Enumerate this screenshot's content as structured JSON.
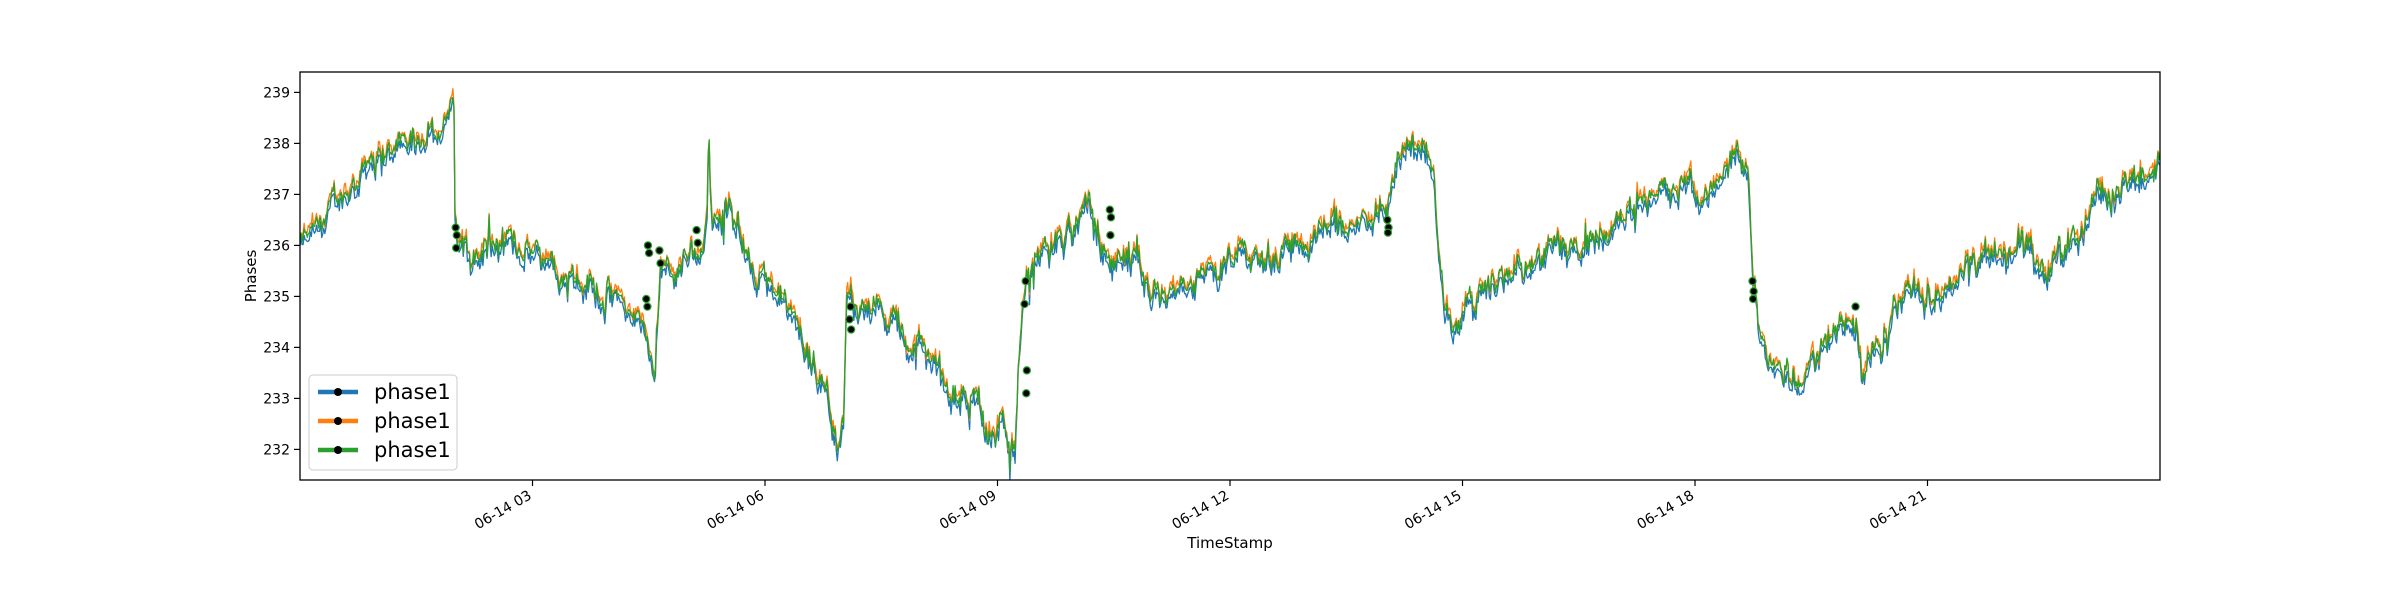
{
  "chart_data": {
    "type": "line",
    "xlabel": "TimeStamp",
    "ylabel": "Phases",
    "x_range": [
      "06-14 00:00",
      "06-14 23:59"
    ],
    "ylim": [
      231.4,
      239.4
    ],
    "yticks": [
      232,
      233,
      234,
      235,
      236,
      237,
      238,
      239
    ],
    "xticks": [
      {
        "hour": 3,
        "label": "06-14 03"
      },
      {
        "hour": 6,
        "label": "06-14 06"
      },
      {
        "hour": 9,
        "label": "06-14 09"
      },
      {
        "hour": 12,
        "label": "06-14 12"
      },
      {
        "hour": 15,
        "label": "06-14 15"
      },
      {
        "hour": 18,
        "label": "06-14 18"
      },
      {
        "hour": 21,
        "label": "06-14 21"
      }
    ],
    "grid": false,
    "legend": {
      "position": "lower-left"
    },
    "series": [
      {
        "name": "phase1",
        "color": "#1f77b4",
        "offset": -0.12
      },
      {
        "name": "phase1",
        "color": "#ff7f0e",
        "offset": 0.06
      },
      {
        "name": "phase1",
        "color": "#2ca02c",
        "offset": 0.0
      }
    ],
    "trend": [
      [
        0.0,
        236.0
      ],
      [
        0.3,
        236.2
      ],
      [
        0.6,
        236.8
      ],
      [
        0.9,
        237.2
      ],
      [
        1.2,
        237.8
      ],
      [
        1.5,
        237.8
      ],
      [
        1.8,
        238.0
      ],
      [
        2.1,
        238.2
      ],
      [
        2.4,
        238.4
      ],
      [
        2.6,
        238.7
      ],
      [
        2.7,
        238.8
      ],
      [
        2.71,
        236.2
      ],
      [
        2.9,
        235.8
      ],
      [
        3.5,
        235.9
      ],
      [
        4.0,
        236.0
      ],
      [
        4.5,
        235.8
      ],
      [
        5.0,
        235.4
      ],
      [
        5.5,
        235.0
      ],
      [
        6.0,
        234.4
      ],
      [
        6.2,
        233.6
      ],
      [
        6.25,
        234.8
      ],
      [
        6.3,
        235.9
      ],
      [
        6.5,
        235.4
      ],
      [
        6.8,
        236.0
      ],
      [
        7.0,
        235.9
      ],
      [
        7.1,
        236.5
      ],
      [
        7.15,
        238.1
      ],
      [
        7.2,
        236.4
      ],
      [
        7.5,
        236.8
      ],
      [
        7.8,
        235.8
      ],
      [
        8.0,
        235.3
      ],
      [
        8.3,
        235.0
      ],
      [
        8.7,
        234.2
      ],
      [
        9.2,
        233.2
      ],
      [
        9.4,
        232.4
      ],
      [
        9.5,
        232.5
      ],
      [
        9.55,
        235.1
      ],
      [
        9.8,
        234.8
      ],
      [
        10.0,
        235.0
      ],
      [
        10.3,
        234.8
      ],
      [
        10.6,
        234.2
      ],
      [
        11.0,
        233.8
      ],
      [
        11.5,
        233.2
      ],
      [
        12.2,
        232.4
      ],
      [
        12.5,
        232.0
      ],
      [
        12.55,
        233.5
      ],
      [
        12.7,
        235.2
      ],
      [
        12.9,
        235.8
      ],
      [
        13.2,
        236.0
      ],
      [
        13.5,
        236.3
      ],
      [
        13.8,
        236.6
      ],
      [
        14.2,
        235.6
      ],
      [
        14.6,
        235.5
      ],
      [
        15.0,
        235.2
      ],
      [
        15.5,
        235.3
      ],
      [
        16.0,
        235.5
      ],
      [
        16.5,
        235.6
      ],
      [
        17.0,
        235.8
      ],
      [
        17.5,
        236.0
      ],
      [
        17.8,
        236.2
      ],
      [
        18.0,
        236.4
      ],
      [
        18.5,
        236.4
      ],
      [
        19.0,
        237.0
      ],
      [
        19.3,
        237.8
      ],
      [
        19.6,
        238.0
      ],
      [
        19.8,
        237.6
      ],
      [
        19.85,
        236.3
      ],
      [
        20.0,
        235.0
      ],
      [
        20.2,
        234.6
      ],
      [
        20.5,
        235.0
      ],
      [
        21.0,
        235.4
      ],
      [
        21.5,
        235.6
      ],
      [
        22.0,
        236.0
      ],
      [
        22.5,
        236.2
      ],
      [
        23.0,
        236.6
      ],
      [
        23.5,
        237.0
      ],
      [
        24.0,
        237.0
      ],
      [
        24.5,
        237.2
      ],
      [
        25.0,
        237.6
      ],
      [
        25.3,
        237.4
      ],
      [
        25.4,
        235.1
      ],
      [
        25.6,
        233.8
      ],
      [
        25.9,
        233.6
      ],
      [
        26.2,
        233.4
      ],
      [
        26.5,
        233.8
      ],
      [
        26.8,
        234.4
      ],
      [
        27.0,
        234.5
      ],
      [
        27.2,
        234.5
      ],
      [
        27.3,
        233.4
      ],
      [
        27.5,
        234.2
      ],
      [
        27.8,
        234.4
      ],
      [
        28.0,
        235.0
      ],
      [
        28.5,
        235.2
      ],
      [
        29.0,
        235.4
      ],
      [
        29.5,
        235.8
      ],
      [
        30.0,
        236.0
      ],
      [
        30.5,
        235.5
      ],
      [
        31.0,
        236.2
      ],
      [
        31.5,
        237.0
      ],
      [
        32.0,
        237.2
      ],
      [
        32.3,
        237.4
      ],
      [
        32.5,
        237.6
      ]
    ],
    "markers": [
      {
        "t": 2.72,
        "y": 236.35
      },
      {
        "t": 2.74,
        "y": 236.2
      },
      {
        "t": 2.73,
        "y": 235.95
      },
      {
        "t": 6.08,
        "y": 236.0
      },
      {
        "t": 6.1,
        "y": 235.85
      },
      {
        "t": 6.05,
        "y": 234.95
      },
      {
        "t": 6.07,
        "y": 234.8
      },
      {
        "t": 6.28,
        "y": 235.9
      },
      {
        "t": 6.3,
        "y": 235.65
      },
      {
        "t": 6.93,
        "y": 236.3
      },
      {
        "t": 6.95,
        "y": 236.05
      },
      {
        "t": 9.62,
        "y": 234.8
      },
      {
        "t": 9.6,
        "y": 234.55
      },
      {
        "t": 9.63,
        "y": 234.35
      },
      {
        "t": 12.68,
        "y": 235.3
      },
      {
        "t": 12.66,
        "y": 234.85
      },
      {
        "t": 12.7,
        "y": 233.55
      },
      {
        "t": 12.69,
        "y": 233.1
      },
      {
        "t": 14.15,
        "y": 236.7
      },
      {
        "t": 14.17,
        "y": 236.55
      },
      {
        "t": 14.16,
        "y": 236.2
      },
      {
        "t": 19.0,
        "y": 236.5
      },
      {
        "t": 19.02,
        "y": 236.35
      },
      {
        "t": 19.01,
        "y": 236.25
      },
      {
        "t": 25.38,
        "y": 235.3
      },
      {
        "t": 25.4,
        "y": 235.1
      },
      {
        "t": 25.39,
        "y": 234.95
      },
      {
        "t": 27.18,
        "y": 234.8
      }
    ]
  }
}
